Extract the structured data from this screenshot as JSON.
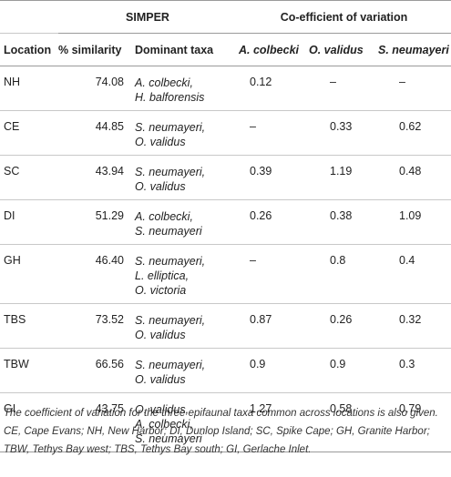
{
  "header": {
    "simper": "SIMPER",
    "cov": "Co-efficient of variation",
    "location": "Location",
    "similarity": "% similarity",
    "dominant": "Dominant taxa",
    "col_a": "A. colbecki",
    "col_o": "O. validus",
    "col_s": "S. neumayeri"
  },
  "rows": [
    {
      "loc": "NH",
      "sim": "74.08",
      "taxa": [
        "A. colbecki,",
        "H. balforensis"
      ],
      "a": "0.12",
      "o": "–",
      "s": "–"
    },
    {
      "loc": "CE",
      "sim": "44.85",
      "taxa": [
        "S. neumayeri,",
        "O. validus"
      ],
      "a": "–",
      "o": "0.33",
      "s": "0.62"
    },
    {
      "loc": "SC",
      "sim": "43.94",
      "taxa": [
        "S. neumayeri,",
        "O. validus"
      ],
      "a": "0.39",
      "o": "1.19",
      "s": "0.48"
    },
    {
      "loc": "DI",
      "sim": "51.29",
      "taxa": [
        "A. colbecki,",
        "S. neumayeri"
      ],
      "a": "0.26",
      "o": "0.38",
      "s": "1.09"
    },
    {
      "loc": "GH",
      "sim": "46.40",
      "taxa": [
        "S. neumayeri,",
        "L. elliptica,",
        "O. victoria"
      ],
      "a": "–",
      "o": "0.8",
      "s": "0.4"
    },
    {
      "loc": "TBS",
      "sim": "73.52",
      "taxa": [
        "S. neumayeri,",
        "O. validus"
      ],
      "a": "0.87",
      "o": "0.26",
      "s": "0.32"
    },
    {
      "loc": "TBW",
      "sim": "66.56",
      "taxa": [
        "S. neumayeri,",
        "O. validus"
      ],
      "a": "0.9",
      "o": "0.9",
      "s": "0.3"
    },
    {
      "loc": "GI",
      "sim": "43.75",
      "taxa": [
        "O. validus,",
        "A. colbecki,",
        "S. neumayeri"
      ],
      "a": "1.27",
      "o": "0.58",
      "s": "0.79"
    }
  ],
  "footnote": "The coefficient of variation for the three epifaunal taxa common across locations is also given. CE, Cape Evans; NH, New Harbor; DI, Dunlop Island; SC, Spike Cape; GH, Granite Harbor; TBW, Tethys Bay west; TBS, Tethys Bay south; GI, Gerlache Inlet."
}
